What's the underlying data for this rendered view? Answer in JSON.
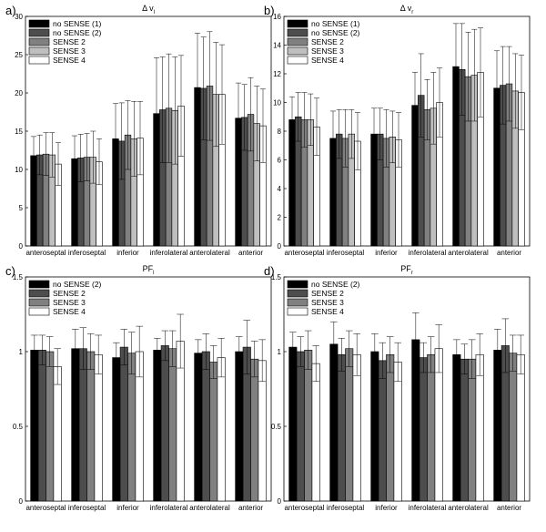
{
  "chart_data": [
    {
      "type": "bar",
      "panel_label": "a)",
      "title": "Δ v",
      "title_sub": "l",
      "categories": [
        "anteroseptal",
        "inferoseptal",
        "inferior",
        "inferolateral",
        "anterolateral",
        "anterior"
      ],
      "ylim": [
        0,
        30
      ],
      "yticks": [
        0,
        5,
        10,
        15,
        20,
        25,
        30
      ],
      "legend_position": "top-left",
      "series": [
        {
          "name": "no SENSE (1)",
          "values": [
            11.8,
            11.4,
            14.0,
            17.3,
            20.7,
            16.7
          ],
          "errors": [
            2.5,
            3.0,
            4.6,
            7.3,
            7.1,
            4.6
          ]
        },
        {
          "name": "no SENSE (2)",
          "values": [
            11.9,
            11.5,
            13.7,
            17.8,
            20.6,
            16.8
          ],
          "errors": [
            2.6,
            3.1,
            5.0,
            6.9,
            6.7,
            4.3
          ]
        },
        {
          "name": "SENSE 2",
          "values": [
            12.0,
            11.6,
            14.5,
            18.0,
            20.9,
            17.2
          ],
          "errors": [
            2.8,
            3.1,
            4.5,
            7.1,
            7.1,
            4.8
          ]
        },
        {
          "name": "SENSE 3",
          "values": [
            11.9,
            11.6,
            14.0,
            17.7,
            19.8,
            16.0
          ],
          "errors": [
            2.9,
            3.4,
            4.9,
            7.0,
            6.8,
            4.9
          ]
        },
        {
          "name": "SENSE 4",
          "values": [
            10.7,
            11.0,
            14.1,
            18.3,
            19.8,
            15.7
          ],
          "errors": [
            2.8,
            3.0,
            4.8,
            6.6,
            6.5,
            4.8
          ]
        }
      ],
      "colors": [
        "#000000",
        "#4d4d4d",
        "#808080",
        "#bfbfbf",
        "#ffffff"
      ]
    },
    {
      "type": "bar",
      "panel_label": "b)",
      "title": "Δ v",
      "title_sub": "r",
      "categories": [
        "anteroseptal",
        "inferoseptal",
        "inferior",
        "inferolateral",
        "anterolateral",
        "anterior"
      ],
      "ylim": [
        0,
        16
      ],
      "yticks": [
        0,
        2,
        4,
        6,
        8,
        10,
        12,
        14,
        16
      ],
      "legend_position": "top-left",
      "series": [
        {
          "name": "no SENSE (1)",
          "values": [
            8.8,
            7.5,
            7.8,
            9.8,
            12.5,
            11.0
          ],
          "errors": [
            1.6,
            1.9,
            1.8,
            2.3,
            3.0,
            2.6
          ]
        },
        {
          "name": "no SENSE (2)",
          "values": [
            9.0,
            7.8,
            7.8,
            10.5,
            12.3,
            11.2
          ],
          "errors": [
            1.7,
            1.7,
            1.8,
            2.9,
            3.2,
            2.7
          ]
        },
        {
          "name": "SENSE 2",
          "values": [
            8.8,
            7.5,
            7.5,
            9.5,
            11.8,
            11.3
          ],
          "errors": [
            1.9,
            2.0,
            2.0,
            2.1,
            3.1,
            2.6
          ]
        },
        {
          "name": "SENSE 3",
          "values": [
            8.8,
            7.8,
            7.6,
            9.6,
            11.9,
            10.8
          ],
          "errors": [
            1.8,
            1.7,
            1.8,
            2.5,
            3.2,
            2.6
          ]
        },
        {
          "name": "SENSE 4",
          "values": [
            8.3,
            7.3,
            7.4,
            10.0,
            12.1,
            10.7
          ],
          "errors": [
            2.0,
            2.0,
            1.9,
            2.4,
            3.1,
            2.6
          ]
        }
      ],
      "colors": [
        "#000000",
        "#4d4d4d",
        "#808080",
        "#bfbfbf",
        "#ffffff"
      ]
    },
    {
      "type": "bar",
      "panel_label": "c)",
      "title": "PF",
      "title_sub": "l",
      "categories": [
        "anteroseptal",
        "inferoseptal",
        "inferior",
        "inferolateral",
        "anterolateral",
        "anterior"
      ],
      "ylim": [
        0,
        1.5
      ],
      "yticks": [
        0,
        0.5,
        1,
        1.5
      ],
      "legend_position": "top-left",
      "series": [
        {
          "name": "no SENSE (2)",
          "values": [
            1.01,
            1.02,
            0.96,
            1.01,
            0.99,
            1.0
          ],
          "errors": [
            0.1,
            0.13,
            0.1,
            0.08,
            0.09,
            0.1
          ]
        },
        {
          "name": "SENSE 2",
          "values": [
            1.01,
            1.02,
            1.03,
            1.04,
            1.0,
            1.03
          ],
          "errors": [
            0.1,
            0.14,
            0.12,
            0.1,
            0.12,
            0.18
          ]
        },
        {
          "name": "SENSE 3",
          "values": [
            1.0,
            1.0,
            0.99,
            1.02,
            0.93,
            0.95
          ],
          "errors": [
            0.1,
            0.12,
            0.14,
            0.12,
            0.11,
            0.12
          ]
        },
        {
          "name": "SENSE 4",
          "values": [
            0.9,
            0.98,
            1.0,
            1.07,
            0.96,
            0.94
          ],
          "errors": [
            0.12,
            0.13,
            0.17,
            0.18,
            0.13,
            0.14
          ]
        }
      ],
      "colors": [
        "#000000",
        "#4d4d4d",
        "#808080",
        "#ffffff"
      ]
    },
    {
      "type": "bar",
      "panel_label": "d)",
      "title": "PF",
      "title_sub": "r",
      "categories": [
        "anteroseptal",
        "inferoseptal",
        "inferior",
        "inferolateral",
        "anterolateral",
        "anterior"
      ],
      "ylim": [
        0,
        1.5
      ],
      "yticks": [
        0,
        0.5,
        1,
        1.5
      ],
      "legend_position": "top-left",
      "series": [
        {
          "name": "no SENSE (2)",
          "values": [
            1.03,
            1.05,
            1.0,
            1.08,
            0.98,
            1.01
          ],
          "errors": [
            0.1,
            0.15,
            0.12,
            0.18,
            0.1,
            0.14
          ]
        },
        {
          "name": "SENSE 2",
          "values": [
            1.0,
            0.98,
            0.94,
            0.96,
            0.95,
            1.04
          ],
          "errors": [
            0.1,
            0.11,
            0.12,
            0.1,
            0.1,
            0.18
          ]
        },
        {
          "name": "SENSE 3",
          "values": [
            1.01,
            1.02,
            0.98,
            0.98,
            0.95,
            0.99
          ],
          "errors": [
            0.13,
            0.12,
            0.12,
            0.12,
            0.13,
            0.12
          ]
        },
        {
          "name": "SENSE 4",
          "values": [
            0.92,
            0.98,
            0.93,
            1.02,
            0.98,
            0.98
          ],
          "errors": [
            0.12,
            0.14,
            0.13,
            0.16,
            0.14,
            0.13
          ]
        }
      ],
      "colors": [
        "#000000",
        "#4d4d4d",
        "#808080",
        "#ffffff"
      ]
    }
  ]
}
